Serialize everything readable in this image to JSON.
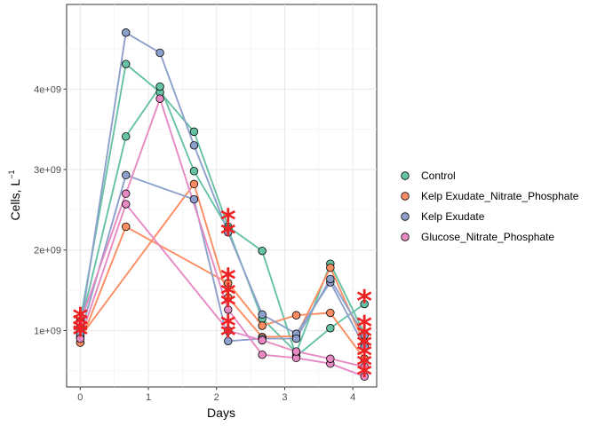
{
  "chart_data": {
    "type": "line",
    "xlabel": "Days",
    "ylabel_main": "Cells, L",
    "ylabel_sup": "−1",
    "xlim": [
      -0.2,
      4.35
    ],
    "ylim": [
      300000000,
      5050000000
    ],
    "x_ticks": [
      {
        "value": 0,
        "label": "0"
      },
      {
        "value": 1,
        "label": "1"
      },
      {
        "value": 2,
        "label": "2"
      },
      {
        "value": 3,
        "label": "3"
      },
      {
        "value": 4,
        "label": "4"
      }
    ],
    "y_ticks": [
      {
        "value": 1000000000,
        "label": "1e+09"
      },
      {
        "value": 2000000000,
        "label": "2e+09"
      },
      {
        "value": 3000000000,
        "label": "3e+09"
      },
      {
        "value": 4000000000,
        "label": "4e+09"
      }
    ],
    "grid": true,
    "legend_position": "right",
    "series": [
      {
        "name": "Control",
        "color": "#66c2a5",
        "replicates": [
          {
            "x": [
              0,
              0.67,
              1.17,
              1.67,
              2.17,
              2.67,
              3.17,
              3.67,
              4.17
            ],
            "y": [
              1120000000,
              4310000000,
              3960000000,
              3470000000,
              2290000000,
              1990000000,
              680000000,
              1030000000,
              1330000000
            ]
          },
          {
            "x": [
              0,
              0.67,
              1.17,
              1.67,
              2.17,
              2.67,
              3.17,
              3.67,
              4.17
            ],
            "y": [
              1050000000,
              3410000000,
              4030000000,
              2980000000,
              2260000000,
              1150000000,
              730000000,
              1830000000,
              960000000
            ]
          }
        ]
      },
      {
        "name": "Kelp Exudate_Nitrate_Phosphate",
        "color": "#fc8d62",
        "replicates": [
          {
            "x": [
              0,
              0.67,
              2.17,
              2.67,
              3.17,
              3.67,
              4.17
            ],
            "y": [
              850000000,
              2290000000,
              1590000000,
              1060000000,
              1190000000,
              1220000000,
              650000000
            ]
          },
          {
            "x": [
              0,
              1.67,
              2.17,
              2.67,
              3.17,
              3.67,
              4.17
            ],
            "y": [
              920000000,
              2820000000,
              1410000000,
              920000000,
              930000000,
              1780000000,
              840000000
            ]
          }
        ]
      },
      {
        "name": "Kelp Exudate",
        "color": "#8da0cb",
        "replicates": [
          {
            "x": [
              0,
              0.67,
              1.17,
              1.67,
              2.17,
              2.67,
              3.17,
              3.67,
              4.17
            ],
            "y": [
              1010000000,
              4700000000,
              4450000000,
              3300000000,
              2220000000,
              1200000000,
              960000000,
              1600000000,
              800000000
            ]
          },
          {
            "x": [
              0,
              0.67,
              1.67,
              2.17,
              2.67,
              3.17,
              3.67,
              4.17
            ],
            "y": [
              950000000,
              2930000000,
              2630000000,
              870000000,
              900000000,
              900000000,
              1640000000,
              940000000
            ]
          }
        ]
      },
      {
        "name": "Glucose_Nitrate_Phosphate",
        "color": "#e78ac3",
        "replicates": [
          {
            "x": [
              0,
              0.67,
              1.17,
              2.17,
              2.67,
              3.17,
              3.67,
              4.17
            ],
            "y": [
              1100000000,
              2700000000,
              3880000000,
              1260000000,
              700000000,
              660000000,
              590000000,
              430000000
            ]
          },
          {
            "x": [
              0,
              0.67,
              2.17,
              2.67,
              3.17,
              3.67,
              4.17
            ],
            "y": [
              900000000,
              2570000000,
              1000000000,
              880000000,
              740000000,
              650000000,
              550000000
            ]
          }
        ]
      }
    ],
    "star_markers": {
      "symbol": "*",
      "color": "#ee2222",
      "points": [
        {
          "x": 0,
          "y": 1160000000
        },
        {
          "x": 0,
          "y": 1090000000
        },
        {
          "x": 0,
          "y": 1010000000
        },
        {
          "x": 0,
          "y": 960000000
        },
        {
          "x": 2.17,
          "y": 2390000000
        },
        {
          "x": 2.17,
          "y": 2210000000
        },
        {
          "x": 2.17,
          "y": 1650000000
        },
        {
          "x": 2.17,
          "y": 1460000000
        },
        {
          "x": 2.17,
          "y": 1330000000
        },
        {
          "x": 2.17,
          "y": 1070000000
        },
        {
          "x": 2.17,
          "y": 950000000
        },
        {
          "x": 4.17,
          "y": 1380000000
        },
        {
          "x": 4.17,
          "y": 1060000000
        },
        {
          "x": 4.17,
          "y": 940000000
        },
        {
          "x": 4.17,
          "y": 820000000
        },
        {
          "x": 4.17,
          "y": 700000000
        },
        {
          "x": 4.17,
          "y": 580000000
        },
        {
          "x": 4.17,
          "y": 460000000
        }
      ]
    }
  }
}
